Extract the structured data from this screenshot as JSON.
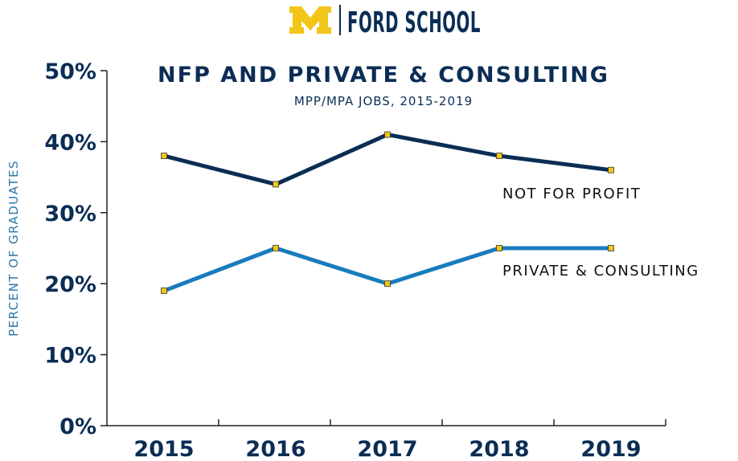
{
  "brand": {
    "logo_letter": "M",
    "name": "FORD SCHOOL",
    "colors": {
      "maize": "#F2C618",
      "navy": "#0B2D55"
    }
  },
  "chart_data": {
    "type": "line",
    "title": "NFP AND PRIVATE & CONSULTING",
    "subtitle": "MPP/MPA JOBS, 2015-2019",
    "xlabel": "",
    "ylabel": "PERCENT OF GRADUATES",
    "categories": [
      "2015",
      "2016",
      "2017",
      "2018",
      "2019"
    ],
    "y_ticks": [
      "0%",
      "10%",
      "20%",
      "30%",
      "40%",
      "50%"
    ],
    "ylim": [
      0,
      50
    ],
    "grid": false,
    "legend": "inline labels",
    "series": [
      {
        "name": "NOT FOR PROFIT",
        "values": [
          38,
          34,
          41,
          38,
          36
        ],
        "color": "#0B2D55"
      },
      {
        "name": "PRIVATE & CONSULTING",
        "values": [
          19,
          25,
          20,
          25,
          25
        ],
        "color": "#1A7BBE"
      }
    ],
    "marker_color": "#F2C618"
  }
}
